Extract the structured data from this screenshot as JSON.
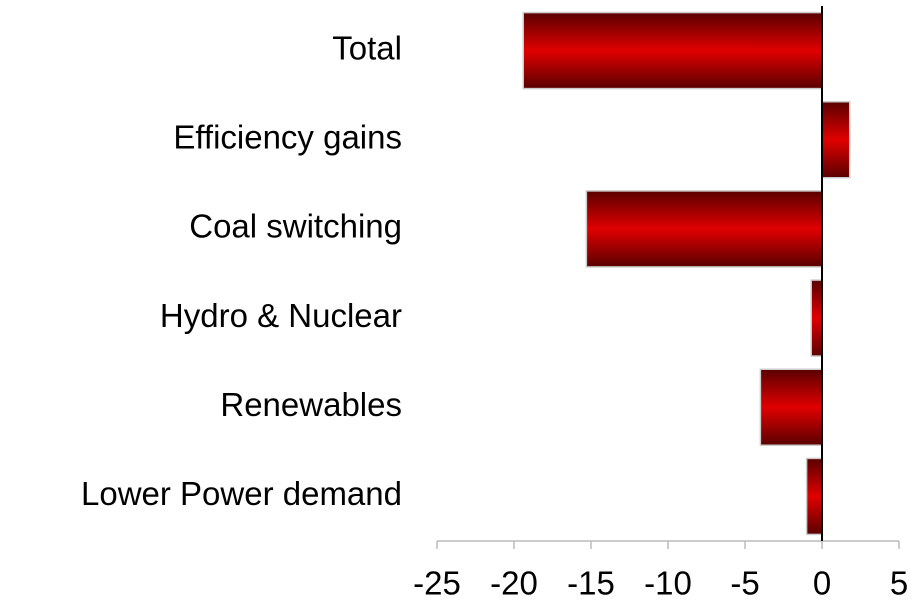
{
  "chart_data": {
    "type": "barh",
    "categories": [
      "Total",
      "Efficiency gains",
      "Coal switching",
      "Hydro & Nuclear",
      "Renewables",
      "Lower Power demand"
    ],
    "values": [
      -19.4,
      1.8,
      -15.3,
      -0.7,
      -4.0,
      -1.0
    ],
    "color": "#e00000",
    "xlim": [
      -25,
      5
    ],
    "xticks": [
      -25,
      -20,
      -15,
      -10,
      -5,
      0,
      5
    ]
  }
}
